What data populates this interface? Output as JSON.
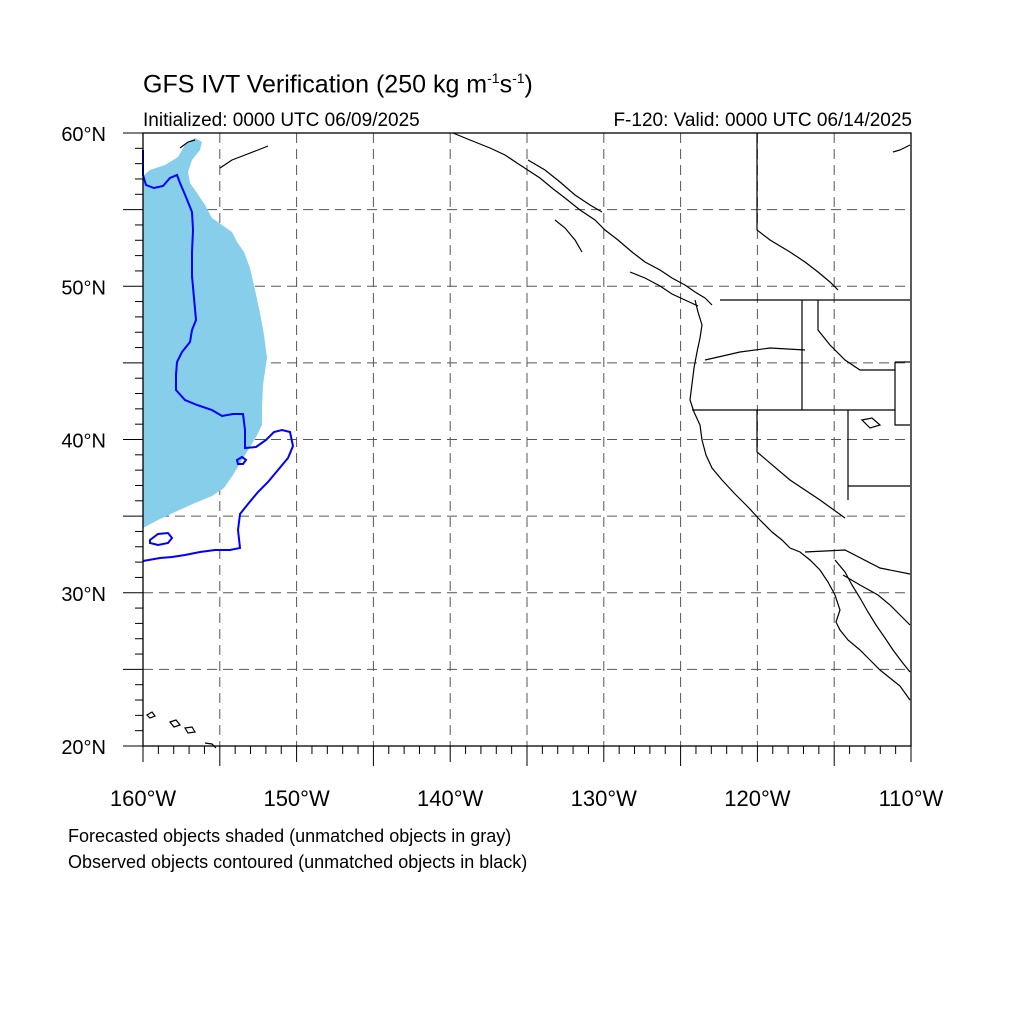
{
  "title": {
    "main": "GFS IVT Verification (250 kg m",
    "sup1": "-1",
    "mid": "s",
    "sup2": "-1",
    "end": ")"
  },
  "initialized": "Initialized: 0000 UTC 06/09/2025",
  "valid": "F-120: Valid: 0000 UTC 06/14/2025",
  "map": {
    "lon_range": [
      -160,
      -110
    ],
    "lat_range": [
      20,
      60
    ],
    "grid": "on",
    "lat_ticks": [
      {
        "value": 20,
        "label": "20°N"
      },
      {
        "value": 30,
        "label": "30°N"
      },
      {
        "value": 40,
        "label": "40°N"
      },
      {
        "value": 50,
        "label": "50°N"
      },
      {
        "value": 60,
        "label": "60°N"
      }
    ],
    "lon_ticks": [
      {
        "value": -160,
        "label": "160°W"
      },
      {
        "value": -150,
        "label": "150°W"
      },
      {
        "value": -140,
        "label": "140°W"
      },
      {
        "value": -130,
        "label": "130°W"
      },
      {
        "value": -120,
        "label": "120°W"
      },
      {
        "value": -110,
        "label": "110°W"
      }
    ],
    "forecast_fill_color": "#87ceeb",
    "observed_contour_color": "#0000ff",
    "coastline_color": "#000000"
  },
  "notes": {
    "line1": "Forecasted objects shaded (unmatched objects in gray)",
    "line2": "Observed objects contoured (unmatched objects in black)"
  }
}
